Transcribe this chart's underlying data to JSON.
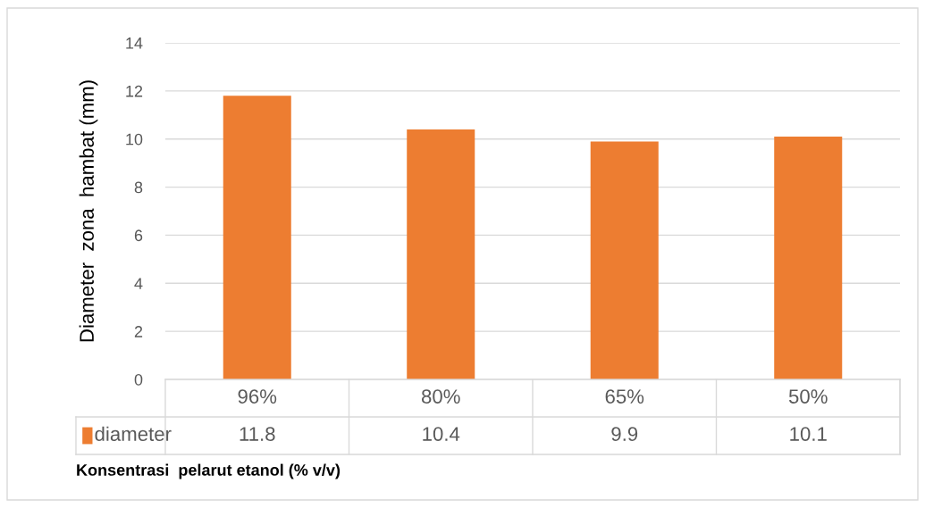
{
  "chart_data": {
    "type": "bar",
    "categories": [
      "96%",
      "80%",
      "65%",
      "50%"
    ],
    "series": [
      {
        "name": "diameter",
        "color": "#ed7d31",
        "values": [
          11.8,
          10.4,
          9.9,
          10.1
        ]
      }
    ],
    "xlabel": "Konsentrasi  pelarut etanol (% v/v)",
    "ylabel": "Diameter  zona  hambat (mm)",
    "ylim": [
      0,
      14
    ],
    "yticks": [
      0,
      2,
      4,
      6,
      8,
      10,
      12,
      14
    ],
    "grid": "y",
    "data_labels": true
  }
}
